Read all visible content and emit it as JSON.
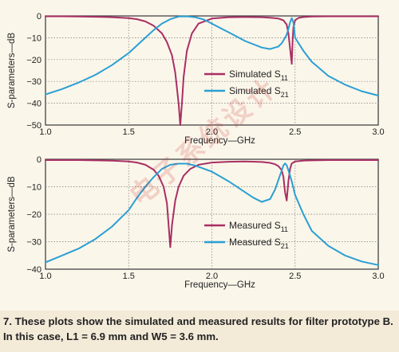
{
  "caption": "7. These plots show the simulated and measured results for filter prototype B. In this case, L1 = 6.9 mm and W5 = 3.6 mm.",
  "watermark_text": "电子系统设计",
  "colors": {
    "s11": "#a82f63",
    "s21": "#2a9fd4",
    "frame": "#444444",
    "grid": "#7a7a7a"
  },
  "chart_data": [
    {
      "type": "line",
      "title": "",
      "xlabel": "Frequency—GHz",
      "ylabel": "S-parameters—dB",
      "xlim": [
        1.0,
        3.0
      ],
      "ylim": [
        -50,
        0
      ],
      "xticks": [
        "1.0",
        "1.5",
        "2.0",
        "2.5",
        "3.0"
      ],
      "yticks": [
        "0",
        "−10",
        "−20",
        "−30",
        "−40",
        "−50"
      ],
      "grid": true,
      "legend_position": "center-right",
      "series": [
        {
          "name": "Simulated S11",
          "label_main": "Simulated S",
          "label_sub": "11",
          "color_key": "s11",
          "x": [
            1.0,
            1.1,
            1.2,
            1.3,
            1.4,
            1.5,
            1.55,
            1.6,
            1.65,
            1.7,
            1.73,
            1.76,
            1.78,
            1.8,
            1.81,
            1.82,
            1.83,
            1.85,
            1.88,
            1.92,
            2.0,
            2.1,
            2.2,
            2.3,
            2.35,
            2.4,
            2.43,
            2.45,
            2.46,
            2.47,
            2.48,
            2.485,
            2.49,
            2.5,
            2.52,
            2.55,
            2.6,
            2.7,
            2.8,
            2.9,
            3.0
          ],
          "y": [
            -0.2,
            -0.2,
            -0.3,
            -0.4,
            -0.6,
            -1.0,
            -1.5,
            -2.5,
            -4.5,
            -8.0,
            -12.0,
            -18.0,
            -26.0,
            -40.0,
            -50.0,
            -40.0,
            -28.0,
            -16.0,
            -8.0,
            -3.5,
            -1.2,
            -0.6,
            -0.5,
            -0.6,
            -0.8,
            -1.2,
            -2.0,
            -4.0,
            -8.0,
            -15.0,
            -22.0,
            -12.0,
            -5.0,
            -2.0,
            -0.9,
            -0.5,
            -0.3,
            -0.2,
            -0.2,
            -0.2,
            -0.2
          ]
        },
        {
          "name": "Simulated S21",
          "label_main": "Simulated S",
          "label_sub": "21",
          "color_key": "s21",
          "x": [
            1.0,
            1.1,
            1.2,
            1.3,
            1.4,
            1.5,
            1.6,
            1.65,
            1.7,
            1.75,
            1.8,
            1.85,
            1.9,
            1.95,
            2.0,
            2.05,
            2.1,
            2.15,
            2.2,
            2.3,
            2.35,
            2.4,
            2.42,
            2.44,
            2.45,
            2.46,
            2.47,
            2.48,
            2.49,
            2.5,
            2.55,
            2.6,
            2.7,
            2.8,
            2.9,
            3.0
          ],
          "y": [
            -36.0,
            -33.5,
            -30.5,
            -27.0,
            -22.5,
            -17.0,
            -10.0,
            -6.5,
            -3.5,
            -1.5,
            -0.3,
            -0.2,
            -0.6,
            -1.6,
            -3.5,
            -5.5,
            -7.5,
            -9.5,
            -11.5,
            -14.5,
            -15.2,
            -14.0,
            -12.5,
            -10.0,
            -8.5,
            -6.0,
            -3.0,
            -1.0,
            -3.0,
            -10.0,
            -16.0,
            -21.0,
            -27.5,
            -31.5,
            -34.5,
            -36.5
          ]
        }
      ]
    },
    {
      "type": "line",
      "title": "",
      "xlabel": "Frequency—GHz",
      "ylabel": "S-parameters—dB",
      "xlim": [
        1.0,
        3.0
      ],
      "ylim": [
        -40,
        0
      ],
      "xticks": [
        "1.0",
        "1.5",
        "2.0",
        "2.5",
        "3.0"
      ],
      "yticks": [
        "0",
        "−10",
        "−20",
        "−30",
        "−40"
      ],
      "grid": true,
      "legend_position": "bottom-right",
      "series": [
        {
          "name": "Measured S11",
          "label_main": "Measured S",
          "label_sub": "11",
          "color_key": "s11",
          "x": [
            1.0,
            1.2,
            1.4,
            1.5,
            1.55,
            1.6,
            1.65,
            1.68,
            1.71,
            1.73,
            1.74,
            1.75,
            1.76,
            1.78,
            1.8,
            1.83,
            1.87,
            1.92,
            2.0,
            2.1,
            2.2,
            2.3,
            2.35,
            2.38,
            2.4,
            2.42,
            2.43,
            2.44,
            2.45,
            2.46,
            2.47,
            2.48,
            2.5,
            2.55,
            2.6,
            2.7,
            2.8,
            2.9,
            3.0
          ],
          "y": [
            -0.3,
            -0.3,
            -0.5,
            -0.8,
            -1.2,
            -2.0,
            -3.8,
            -6.0,
            -10.0,
            -16.0,
            -24.0,
            -32.0,
            -24.0,
            -15.0,
            -10.0,
            -6.0,
            -3.5,
            -2.0,
            -1.2,
            -0.9,
            -0.8,
            -1.0,
            -1.3,
            -1.8,
            -2.5,
            -4.0,
            -6.5,
            -12.0,
            -15.0,
            -8.0,
            -3.5,
            -1.5,
            -0.8,
            -0.5,
            -0.4,
            -0.3,
            -0.3,
            -0.3,
            -0.3
          ]
        },
        {
          "name": "Measured S21",
          "label_main": "Measured S",
          "label_sub": "21",
          "color_key": "s21",
          "x": [
            1.0,
            1.1,
            1.2,
            1.3,
            1.4,
            1.5,
            1.55,
            1.6,
            1.65,
            1.7,
            1.75,
            1.8,
            1.85,
            1.9,
            2.0,
            2.1,
            2.2,
            2.25,
            2.3,
            2.35,
            2.38,
            2.4,
            2.42,
            2.43,
            2.44,
            2.45,
            2.46,
            2.48,
            2.5,
            2.55,
            2.6,
            2.7,
            2.8,
            2.9,
            3.0
          ],
          "y": [
            -37.5,
            -35.0,
            -32.5,
            -29.0,
            -24.5,
            -18.5,
            -14.0,
            -10.0,
            -6.5,
            -3.5,
            -2.0,
            -1.6,
            -1.6,
            -2.3,
            -4.5,
            -8.0,
            -12.0,
            -14.0,
            -15.5,
            -14.5,
            -11.0,
            -7.5,
            -4.0,
            -2.2,
            -1.5,
            -2.2,
            -4.0,
            -8.0,
            -13.0,
            -20.0,
            -26.0,
            -31.5,
            -35.0,
            -37.2,
            -38.5
          ]
        }
      ]
    }
  ]
}
